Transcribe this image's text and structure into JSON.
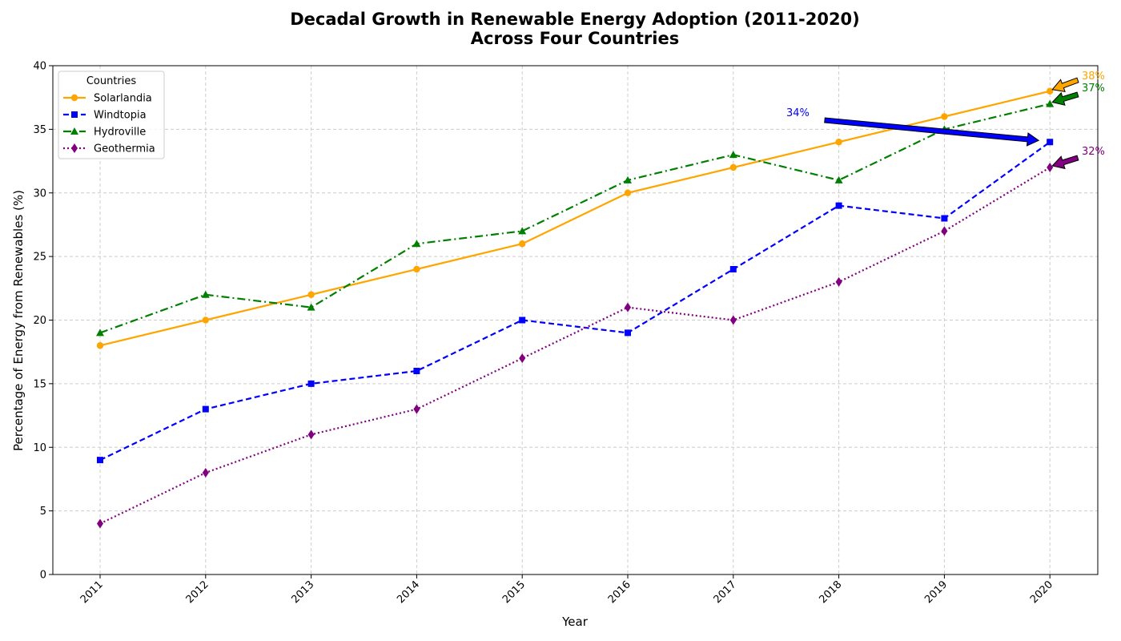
{
  "chart_data": {
    "type": "line",
    "title": "Decadal Growth in Renewable Energy Adoption (2011-2020)",
    "subtitle": "Across Four Countries",
    "xlabel": "Year",
    "ylabel": "Percentage of Energy from Renewables (%)",
    "x": [
      "2011",
      "2012",
      "2013",
      "2014",
      "2015",
      "2016",
      "2017",
      "2018",
      "2019",
      "2020"
    ],
    "ylim": [
      0,
      40
    ],
    "yticks": [
      "0",
      "5",
      "10",
      "15",
      "20",
      "25",
      "30",
      "35",
      "40"
    ],
    "grid": true,
    "legend": {
      "title": "Countries",
      "position": "top-left"
    },
    "series": [
      {
        "name": "Solarlandia",
        "color": "#FFA500",
        "marker": "circle",
        "linestyle": "solid",
        "values": [
          18,
          20,
          22,
          24,
          26,
          30,
          32,
          34,
          36,
          38
        ]
      },
      {
        "name": "Windtopia",
        "color": "#0000FF",
        "marker": "square",
        "linestyle": "dashed",
        "values": [
          9,
          13,
          15,
          16,
          20,
          19,
          24,
          29,
          28,
          34
        ]
      },
      {
        "name": "Hydroville",
        "color": "#008000",
        "marker": "triangle",
        "linestyle": "dashdot",
        "values": [
          19,
          22,
          21,
          26,
          27,
          31,
          33,
          31,
          35,
          37
        ]
      },
      {
        "name": "Geothermia",
        "color": "#800080",
        "marker": "diamond",
        "linestyle": "dotted",
        "values": [
          4,
          8,
          11,
          13,
          17,
          21,
          20,
          23,
          27,
          32
        ]
      }
    ],
    "annotations": [
      {
        "text": "38%",
        "color": "#FFA500",
        "target_x": "2020",
        "target_y": 38
      },
      {
        "text": "37%",
        "color": "#008000",
        "target_x": "2020",
        "target_y": 37
      },
      {
        "text": "34%",
        "color": "#0000FF",
        "target_x": "2020",
        "target_y": 34
      },
      {
        "text": "32%",
        "color": "#800080",
        "target_x": "2020",
        "target_y": 32
      }
    ]
  }
}
